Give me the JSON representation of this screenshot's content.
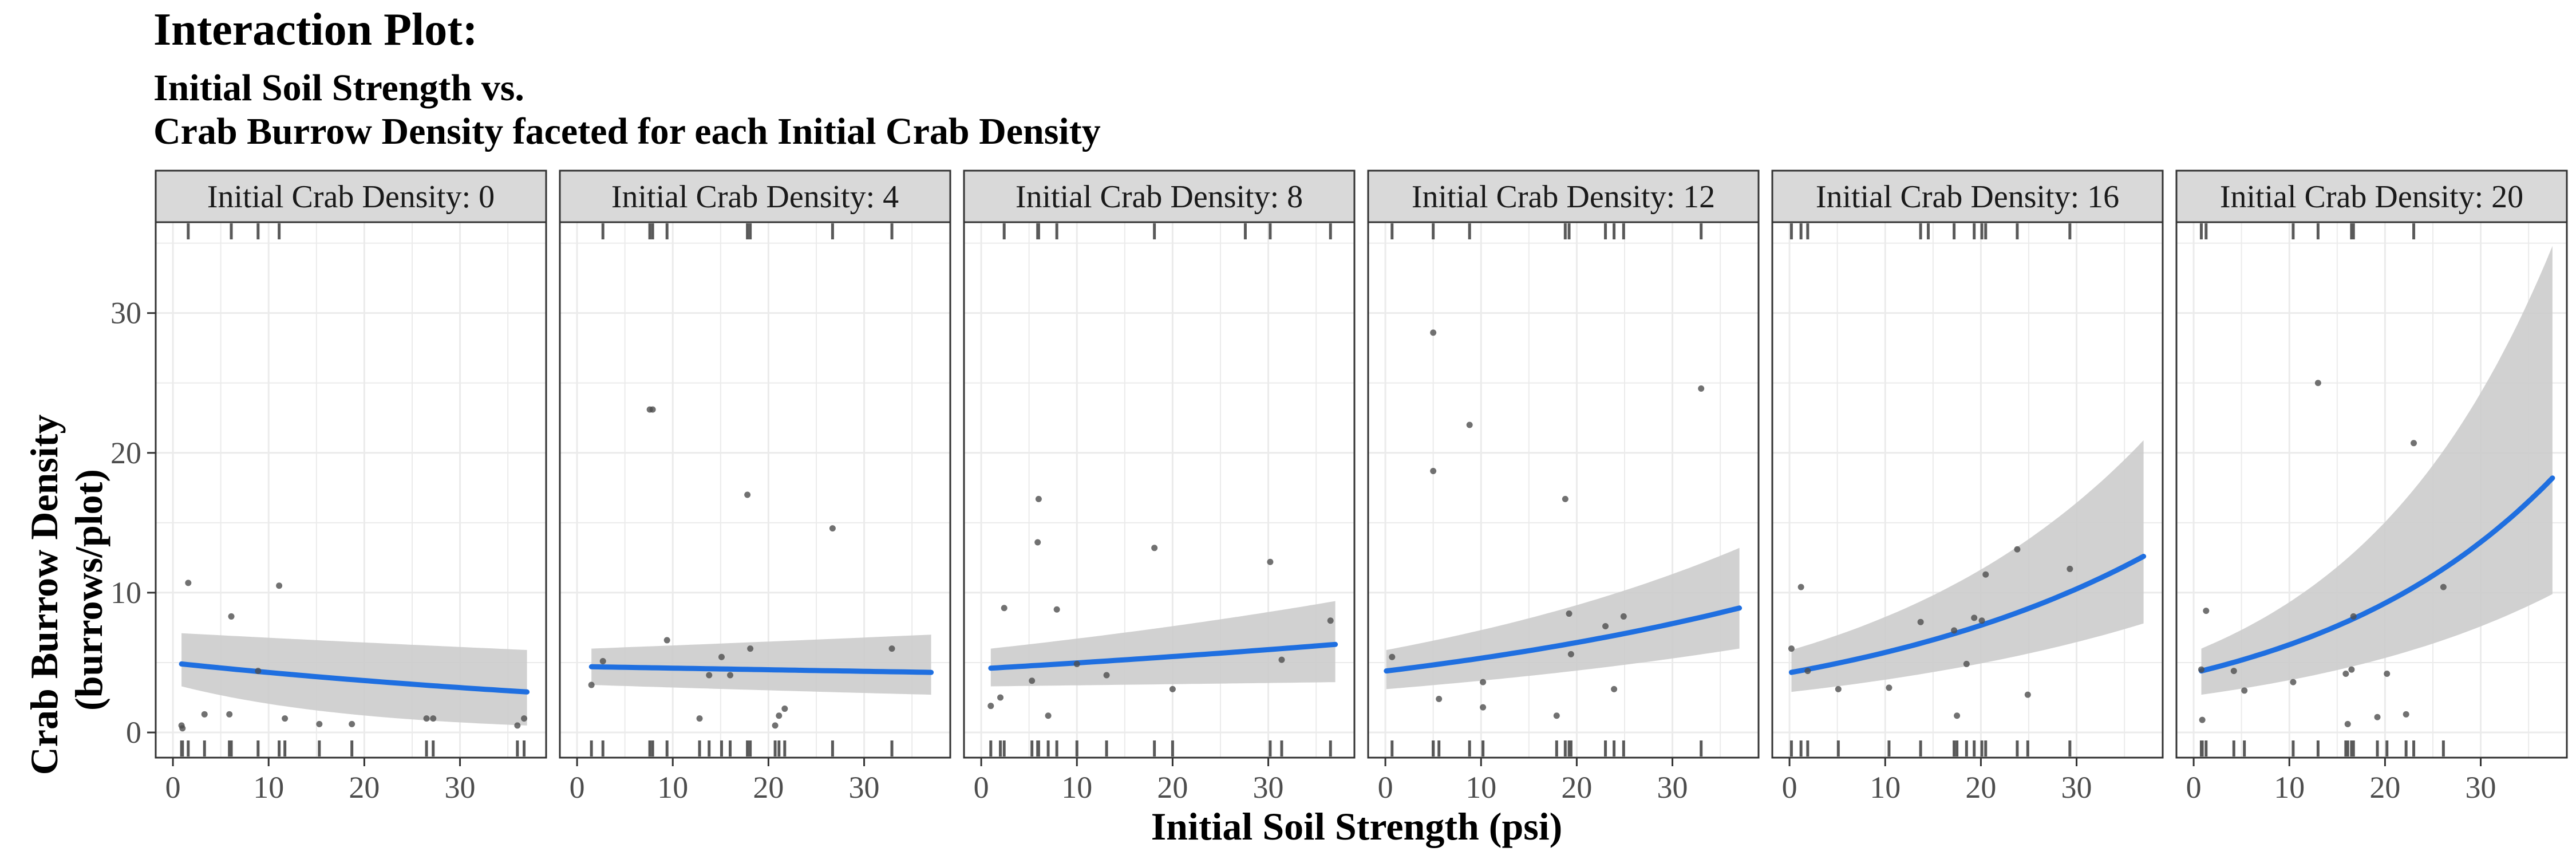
{
  "title": "Interaction Plot:",
  "subtitle_line1": "Initial Soil Strength vs.",
  "subtitle_line2": "Crab Burrow Density faceted for each Initial Crab Density",
  "chart_data": {
    "type": "scatter",
    "title": "Interaction Plot:",
    "subtitle": "Initial Soil Strength vs. Crab Burrow Density faceted for each Initial Crab Density",
    "xlabel": "Initial Soil Strength (psi)",
    "ylabel": [
      "Crab Burrow Density",
      "(burrows/plot)"
    ],
    "xlim": [
      -1.8,
      39
    ],
    "ylim": [
      -1.8,
      36.5
    ],
    "x_ticks": [
      0,
      10,
      20,
      30
    ],
    "y_ticks": [
      0,
      10,
      20,
      30
    ],
    "x_tick_labels": [
      "0",
      "10",
      "20",
      "30"
    ],
    "y_tick_labels": [
      "0",
      "10",
      "20",
      "30"
    ],
    "grid": true,
    "rug": "x axis top and bottom",
    "colors": {
      "points": "#4d4d4d",
      "rug": "#595959",
      "fit_line": "#1f6fe0",
      "confidence_band": "#cccccc",
      "strip_background": "#d9d9d9",
      "grid": "#ebebeb"
    },
    "facets": [
      {
        "label": "Initial Crab Density: 0",
        "points": [
          [
            1.6,
            10.7
          ],
          [
            6.1,
            8.3
          ],
          [
            8.9,
            4.4
          ],
          [
            11.1,
            10.5
          ],
          [
            3.3,
            1.3
          ],
          [
            5.9,
            1.3
          ],
          [
            11.7,
            1.0
          ],
          [
            0.9,
            0.5
          ],
          [
            1.0,
            0.3
          ],
          [
            15.3,
            0.6
          ],
          [
            18.7,
            0.6
          ],
          [
            26.5,
            1.0
          ],
          [
            27.2,
            1.0
          ],
          [
            36.0,
            0.5
          ],
          [
            36.7,
            1.0
          ]
        ],
        "fit": {
          "x": [
            0.9,
            37
          ],
          "y": [
            4.9,
            2.9
          ]
        },
        "band": {
          "upper": [
            7.1,
            5.9
          ],
          "lower": [
            3.3,
            0.5
          ]
        },
        "rug_top": [
          1.6,
          6.1,
          8.9,
          11.1
        ]
      },
      {
        "label": "Initial Crab Density: 4",
        "points": [
          [
            7.6,
            23.1
          ],
          [
            7.9,
            23.1
          ],
          [
            17.8,
            17.0
          ],
          [
            26.7,
            14.6
          ],
          [
            9.4,
            6.6
          ],
          [
            2.7,
            5.1
          ],
          [
            1.5,
            3.4
          ],
          [
            13.8,
            4.1
          ],
          [
            15.1,
            5.4
          ],
          [
            16.0,
            4.1
          ],
          [
            18.1,
            6.0
          ],
          [
            21.7,
            1.7
          ],
          [
            21.1,
            1.2
          ],
          [
            12.8,
            1.0
          ],
          [
            20.7,
            0.5
          ],
          [
            32.9,
            6.0
          ]
        ],
        "fit": {
          "x": [
            1.5,
            37
          ],
          "y": [
            4.7,
            4.3
          ]
        },
        "band": {
          "upper": [
            6.0,
            7.0
          ],
          "lower": [
            3.4,
            2.7
          ]
        },
        "rug_top": [
          2.7,
          7.6,
          7.9,
          9.4,
          17.8,
          18.1,
          26.7,
          32.9
        ]
      },
      {
        "label": "Initial Crab Density: 8",
        "points": [
          [
            6.0,
            16.7
          ],
          [
            5.9,
            13.6
          ],
          [
            18.1,
            13.2
          ],
          [
            30.2,
            12.2
          ],
          [
            36.5,
            8.0
          ],
          [
            2.4,
            8.9
          ],
          [
            7.9,
            8.8
          ],
          [
            5.3,
            3.7
          ],
          [
            10.0,
            4.9
          ],
          [
            13.1,
            4.1
          ],
          [
            1.0,
            1.9
          ],
          [
            2.0,
            2.5
          ],
          [
            7.0,
            1.2
          ],
          [
            20.0,
            3.1
          ],
          [
            31.4,
            5.2
          ]
        ],
        "fit": {
          "x": [
            1.0,
            37
          ],
          "y": [
            4.6,
            6.3
          ]
        },
        "band": {
          "upper": [
            6.0,
            9.4
          ],
          "lower": [
            3.3,
            3.6
          ]
        },
        "rug_top": [
          2.4,
          5.9,
          6.0,
          7.9,
          18.1,
          27.6,
          30.2,
          36.5
        ]
      },
      {
        "label": "Initial Crab Density: 12",
        "points": [
          [
            5.0,
            28.6
          ],
          [
            33.0,
            24.6
          ],
          [
            8.8,
            22.0
          ],
          [
            5.0,
            18.7
          ],
          [
            18.8,
            16.7
          ],
          [
            19.2,
            8.5
          ],
          [
            24.9,
            8.3
          ],
          [
            23.0,
            7.6
          ],
          [
            0.7,
            5.4
          ],
          [
            10.2,
            3.6
          ],
          [
            5.6,
            2.4
          ],
          [
            10.2,
            1.8
          ],
          [
            19.4,
            5.6
          ],
          [
            17.9,
            1.2
          ],
          [
            23.9,
            3.1
          ]
        ],
        "fit": {
          "x": [
            0.1,
            37
          ],
          "y": [
            4.4,
            8.9
          ]
        },
        "band": {
          "upper": [
            5.9,
            13.2
          ],
          "lower": [
            3.1,
            6.0
          ]
        },
        "rug_top": [
          0.7,
          5.0,
          8.8,
          18.8,
          19.2,
          23.0,
          23.9,
          24.9,
          33.0
        ]
      },
      {
        "label": "Initial Crab Density: 16",
        "points": [
          [
            1.2,
            10.4
          ],
          [
            0.2,
            6.0
          ],
          [
            1.9,
            4.4
          ],
          [
            5.1,
            3.1
          ],
          [
            10.4,
            3.2
          ],
          [
            13.7,
            7.9
          ],
          [
            17.2,
            7.3
          ],
          [
            17.5,
            1.2
          ],
          [
            18.5,
            4.9
          ],
          [
            19.3,
            8.2
          ],
          [
            20.1,
            8.0
          ],
          [
            20.5,
            11.3
          ],
          [
            23.8,
            13.1
          ],
          [
            24.9,
            2.7
          ],
          [
            29.3,
            11.7
          ]
        ],
        "fit": {
          "x": [
            0.2,
            37
          ],
          "y": [
            4.3,
            12.6
          ]
        },
        "band": {
          "upper": [
            5.9,
            20.9
          ],
          "lower": [
            2.9,
            7.8
          ]
        },
        "rug_top": [
          0.2,
          1.2,
          1.9,
          13.7,
          14.5,
          17.2,
          19.3,
          20.1,
          20.5,
          23.8,
          29.3
        ]
      },
      {
        "label": "Initial Crab Density: 20",
        "points": [
          [
            13.0,
            25.0
          ],
          [
            23.0,
            20.7
          ],
          [
            1.3,
            8.7
          ],
          [
            16.7,
            8.3
          ],
          [
            26.1,
            10.4
          ],
          [
            10.4,
            3.6
          ],
          [
            0.8,
            4.5
          ],
          [
            4.2,
            4.4
          ],
          [
            5.3,
            3.0
          ],
          [
            0.9,
            0.9
          ],
          [
            15.9,
            4.2
          ],
          [
            16.5,
            4.5
          ],
          [
            16.1,
            0.6
          ],
          [
            19.2,
            1.1
          ],
          [
            20.2,
            4.2
          ],
          [
            22.2,
            1.3
          ]
        ],
        "fit": {
          "x": [
            0.8,
            37.5
          ],
          "y": [
            4.4,
            18.2
          ]
        },
        "band": {
          "upper": [
            6.0,
            34.8
          ],
          "lower": [
            2.7,
            9.9
          ]
        },
        "rug_top": [
          0.8,
          1.3,
          10.4,
          13.0,
          16.5,
          16.7,
          23.0
        ]
      }
    ]
  }
}
